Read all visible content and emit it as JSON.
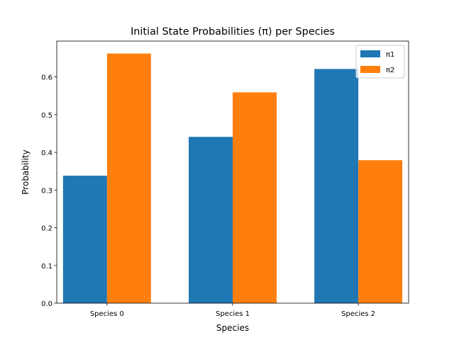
{
  "chart_data": {
    "type": "bar",
    "title": "Initial State Probabilities (π) per Species",
    "xlabel": "Species",
    "ylabel": "Probability",
    "categories": [
      "Species 0",
      "Species 1",
      "Species 2"
    ],
    "series": [
      {
        "name": "π1",
        "color": "#1f77b4",
        "values": [
          0.338,
          0.441,
          0.621
        ]
      },
      {
        "name": "π2",
        "color": "#ff7f0e",
        "values": [
          0.662,
          0.559,
          0.379
        ]
      }
    ],
    "yticks": [
      "0.0",
      "0.1",
      "0.2",
      "0.3",
      "0.4",
      "0.5",
      "0.6"
    ],
    "ylim": [
      0,
      0.695
    ],
    "grid": false,
    "legend_position": "top-right"
  }
}
